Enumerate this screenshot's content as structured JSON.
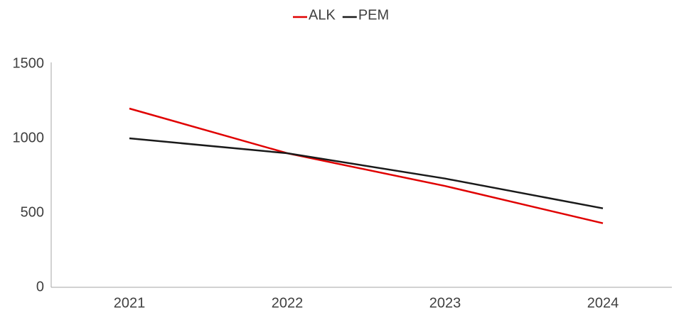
{
  "chart_data": {
    "type": "line",
    "categories": [
      "2021",
      "2022",
      "2023",
      "2024"
    ],
    "series": [
      {
        "name": "ALK",
        "color": "#e00000",
        "values": [
          1200,
          900,
          680,
          430
        ]
      },
      {
        "name": "PEM",
        "color": "#1a1a1a",
        "values": [
          1000,
          900,
          730,
          530
        ]
      }
    ],
    "ylim": [
      0,
      1500
    ],
    "yticks": [
      0,
      500,
      1000,
      1500
    ],
    "grid": false,
    "legend": "top"
  }
}
